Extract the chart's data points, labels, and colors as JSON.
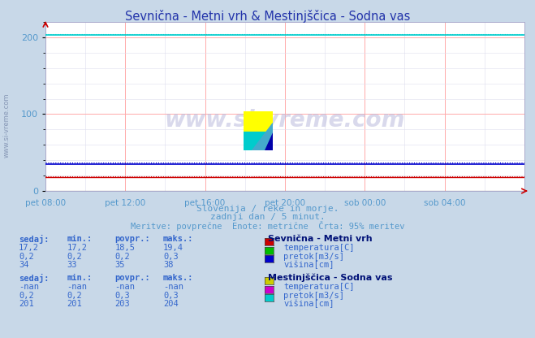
{
  "title": "Sevnična - Metni vrh & Mestinjščica - Sodna vas",
  "title_color": "#2233aa",
  "bg_color": "#c8d8e8",
  "plot_bg_color": "#ffffff",
  "grid_color_major": "#ffaaaa",
  "grid_color_minor": "#ddddee",
  "ylim": [
    0,
    220
  ],
  "yticks": [
    0,
    100,
    200
  ],
  "xlabel_color": "#5599cc",
  "watermark": "www.si-vreme.com",
  "subtitle1": "Slovenija / reke in morje.",
  "subtitle2": "zadnji dan / 5 minut.",
  "subtitle3": "Meritve: povprečne  Enote: metrične  Črta: 95% meritev",
  "subtitle_color": "#5599cc",
  "xtick_labels": [
    "pet 08:00",
    "pet 12:00",
    "pet 16:00",
    "pet 20:00",
    "sob 00:00",
    "sob 04:00"
  ],
  "n_points": 288,
  "sevnicna_temp_value": 18.5,
  "sevnicna_temp_color": "#cc0000",
  "sevnicna_pretok_value": 0.2,
  "sevnicna_pretok_color": "#00bb00",
  "sevnicna_visina_value": 35,
  "sevnicna_visina_color": "#0000cc",
  "mestinjscica_pretok_value": 0.3,
  "mestinjscica_pretok_color": "#cc00cc",
  "mestinjscica_visina_value": 203,
  "mestinjscica_visina_color": "#00cccc",
  "mestinjscica_temp_color": "#cccc00",
  "table_label_color": "#3366cc",
  "table_bold_color": "#001177",
  "legend1_title": "Sevnična - Metni vrh",
  "legend1_items": [
    {
      "label": "temperatura[C]",
      "color": "#cc0000"
    },
    {
      "label": "pretok[m3/s]",
      "color": "#00bb00"
    },
    {
      "label": "višina[cm]",
      "color": "#0000cc"
    }
  ],
  "legend2_title": "Mestinjščica - Sodna vas",
  "legend2_items": [
    {
      "label": "temperatura[C]",
      "color": "#cccc00"
    },
    {
      "label": "pretok[m3/s]",
      "color": "#cc00cc"
    },
    {
      "label": "višina[cm]",
      "color": "#00cccc"
    }
  ],
  "table1_headers": [
    "sedaj:",
    "min.:",
    "povpr.:",
    "maks.:"
  ],
  "table1_row1": [
    "17,2",
    "17,2",
    "18,5",
    "19,4"
  ],
  "table1_row2": [
    "0,2",
    "0,2",
    "0,2",
    "0,3"
  ],
  "table1_row3": [
    "34",
    "33",
    "35",
    "38"
  ],
  "table2_headers": [
    "sedaj:",
    "min.:",
    "povpr.:",
    "maks.:"
  ],
  "table2_row1": [
    "-nan",
    "-nan",
    "-nan",
    "-nan"
  ],
  "table2_row2": [
    "0,2",
    "0,2",
    "0,3",
    "0,3"
  ],
  "table2_row3": [
    "201",
    "201",
    "203",
    "204"
  ]
}
